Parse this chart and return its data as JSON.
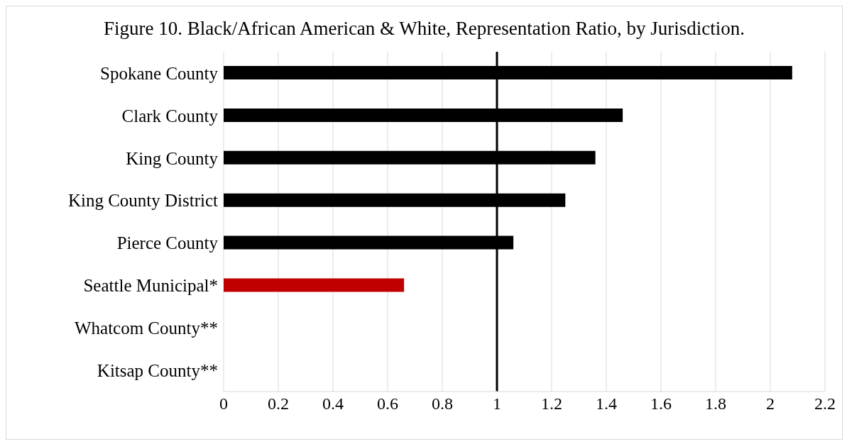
{
  "chart_data": {
    "type": "bar",
    "orientation": "horizontal",
    "title": "Figure 10. Black/African American & White, Representation Ratio, by Jurisdiction.",
    "categories": [
      "Spokane County",
      "Clark County",
      "King County",
      "King County District",
      "Pierce County",
      "Seattle Municipal*",
      "Whatcom County**",
      "Kitsap County**"
    ],
    "values": [
      2.08,
      1.46,
      1.36,
      1.25,
      1.06,
      0.66,
      null,
      null
    ],
    "colors": [
      "#000000",
      "#000000",
      "#000000",
      "#000000",
      "#000000",
      "#c00000",
      "#000000",
      "#000000"
    ],
    "xlim": [
      0,
      2.2
    ],
    "xticks": [
      0,
      0.2,
      0.4,
      0.6,
      0.8,
      1,
      1.2,
      1.4,
      1.6,
      1.8,
      2,
      2.2
    ],
    "grid": "x",
    "legend": false,
    "ref_lines": [
      {
        "axis": "x",
        "value": 1,
        "color": "#000000"
      }
    ]
  }
}
